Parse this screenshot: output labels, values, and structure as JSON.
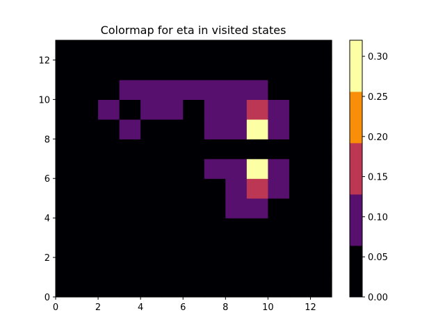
{
  "chart_data": {
    "type": "heatmap",
    "title": "Colormap for eta in visited states",
    "xlabel": "",
    "ylabel": "",
    "xlim": [
      0,
      13
    ],
    "ylim": [
      0,
      13
    ],
    "x_ticks": [
      0,
      2,
      4,
      6,
      8,
      10,
      12
    ],
    "y_ticks": [
      0,
      2,
      4,
      6,
      8,
      10,
      12
    ],
    "colormap": "inferno (discrete, 5 levels)",
    "colorbar": {
      "range": [
        0.0,
        0.32
      ],
      "boundaries": [
        0.0,
        0.064,
        0.128,
        0.192,
        0.256,
        0.32
      ],
      "colors": [
        "#000004",
        "#57106e",
        "#bc3754",
        "#f98e09",
        "#fcffa4"
      ],
      "ticks": [
        0.0,
        0.05,
        0.1,
        0.15,
        0.2,
        0.25,
        0.3
      ],
      "tick_labels": [
        "0.00",
        "0.05",
        "0.10",
        "0.15",
        "0.20",
        "0.25",
        "0.30"
      ]
    },
    "grid": false,
    "cell_values_note_rows_from_y0": true,
    "values": [
      [
        0,
        0,
        0,
        0,
        0,
        0,
        0,
        0,
        0,
        0,
        0,
        0,
        0
      ],
      [
        0,
        0,
        0,
        0,
        0,
        0,
        0,
        0,
        0,
        0,
        0,
        0,
        0
      ],
      [
        0,
        0,
        0,
        0,
        0,
        0,
        0,
        0,
        0,
        0,
        0,
        0,
        0
      ],
      [
        0,
        0,
        0,
        0,
        0,
        0,
        0,
        0,
        0,
        0,
        0,
        0,
        0
      ],
      [
        0,
        0,
        0,
        0,
        0,
        0,
        0,
        0,
        0.1,
        0.1,
        0,
        0,
        0
      ],
      [
        0,
        0,
        0,
        0,
        0,
        0,
        0,
        0,
        0.1,
        0.15,
        0.1,
        0,
        0
      ],
      [
        0,
        0,
        0,
        0,
        0,
        0,
        0,
        0.1,
        0.1,
        0.3,
        0.1,
        0,
        0
      ],
      [
        0,
        0,
        0,
        0,
        0,
        0,
        0,
        0,
        0,
        0,
        0,
        0,
        0
      ],
      [
        0,
        0,
        0,
        0.1,
        0,
        0,
        0,
        0.1,
        0.1,
        0.3,
        0.1,
        0,
        0
      ],
      [
        0,
        0,
        0.1,
        0,
        0.1,
        0.1,
        0,
        0.1,
        0.1,
        0.15,
        0.1,
        0,
        0
      ],
      [
        0,
        0,
        0,
        0.1,
        0.1,
        0.1,
        0.1,
        0.1,
        0.1,
        0.1,
        0,
        0,
        0
      ],
      [
        0,
        0,
        0,
        0,
        0,
        0,
        0,
        0,
        0,
        0,
        0,
        0,
        0
      ],
      [
        0,
        0,
        0,
        0,
        0,
        0,
        0,
        0,
        0,
        0,
        0,
        0,
        0
      ]
    ]
  }
}
